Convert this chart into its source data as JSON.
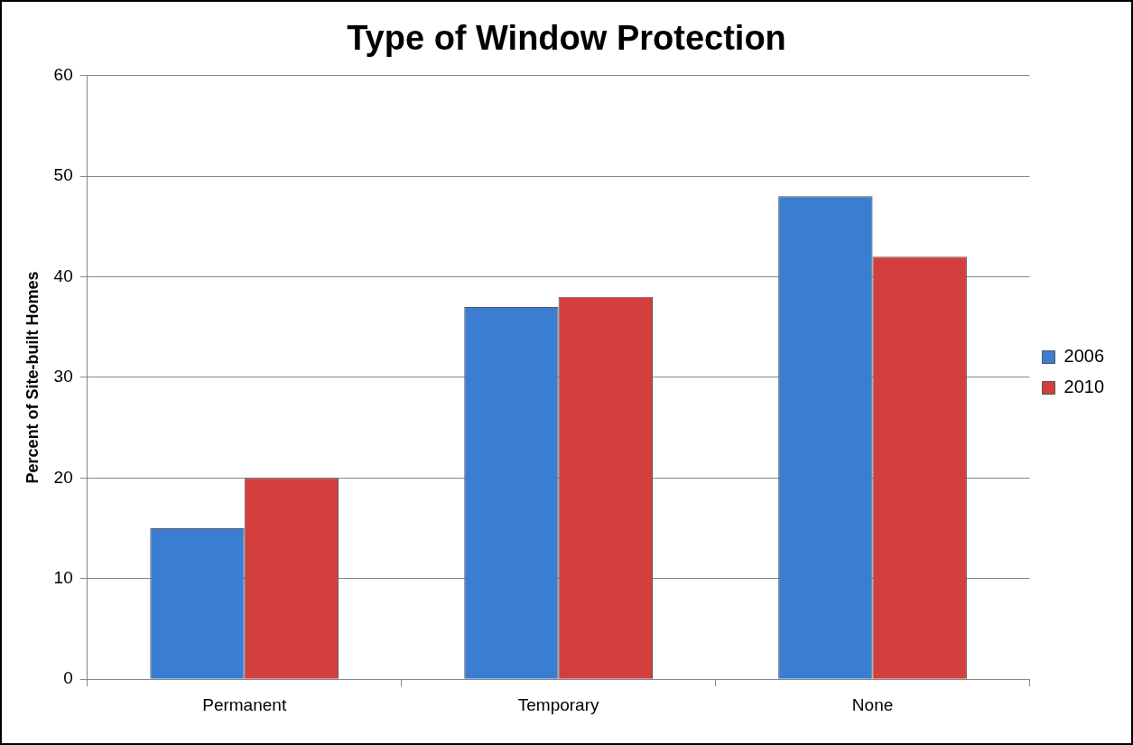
{
  "chart_data": {
    "type": "bar",
    "title": "Type of Window Protection",
    "ylabel": "Percent of Site-built Homes",
    "categories": [
      "Permanent",
      "Temporary",
      "None"
    ],
    "series": [
      {
        "name": "2006",
        "color": "#3b7dd0",
        "values": [
          15,
          37,
          48
        ]
      },
      {
        "name": "2010",
        "color": "#d23f3c",
        "values": [
          20,
          38,
          42
        ]
      }
    ],
    "ylim": [
      0,
      60
    ],
    "yticks": [
      0,
      10,
      20,
      30,
      40,
      50,
      60
    ],
    "grid": "y",
    "legend": "right"
  }
}
